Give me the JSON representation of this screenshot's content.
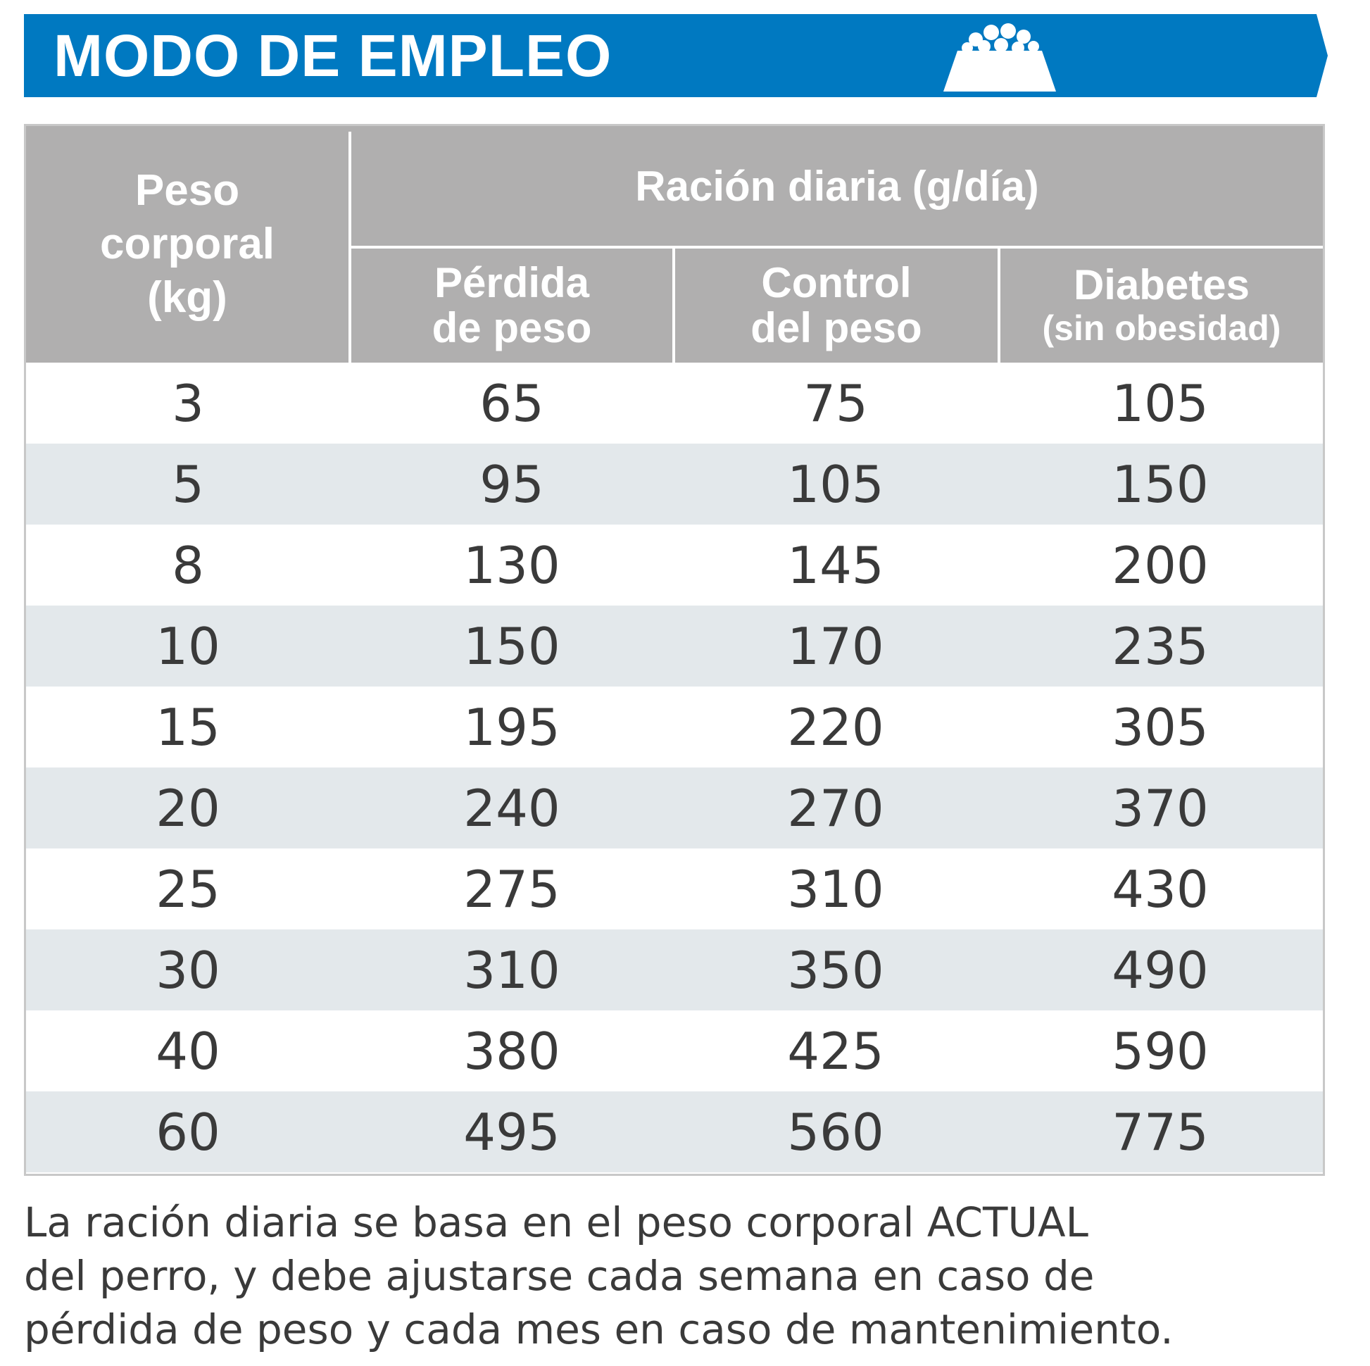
{
  "banner": {
    "title": "MODO DE EMPLEO",
    "icon": "food-bowl-icon",
    "color": "#0079c1"
  },
  "table": {
    "header_color": "#b0afaf",
    "alt_row_color": "#e3e8eb",
    "weight_header": [
      "Peso",
      "corporal",
      "(kg)"
    ],
    "ration_header": "Ración diaria (g/día)",
    "sub_headers": [
      {
        "line1": "Pérdida",
        "line2": "de peso"
      },
      {
        "line1": "Control",
        "line2": "del peso"
      },
      {
        "line1": "Diabetes",
        "line2": "(sin obesidad)"
      }
    ],
    "rows": [
      [
        "3",
        "65",
        "75",
        "105"
      ],
      [
        "5",
        "95",
        "105",
        "150"
      ],
      [
        "8",
        "130",
        "145",
        "200"
      ],
      [
        "10",
        "150",
        "170",
        "235"
      ],
      [
        "15",
        "195",
        "220",
        "305"
      ],
      [
        "20",
        "240",
        "270",
        "370"
      ],
      [
        "25",
        "275",
        "310",
        "430"
      ],
      [
        "30",
        "310",
        "350",
        "490"
      ],
      [
        "40",
        "380",
        "425",
        "590"
      ],
      [
        "60",
        "495",
        "560",
        "775"
      ]
    ]
  },
  "note": [
    "La ración diaria se basa en el peso corporal ACTUAL",
    "del perro, y debe ajustarse cada semana en caso de",
    "pérdida de peso y cada mes en caso de mantenimiento."
  ]
}
